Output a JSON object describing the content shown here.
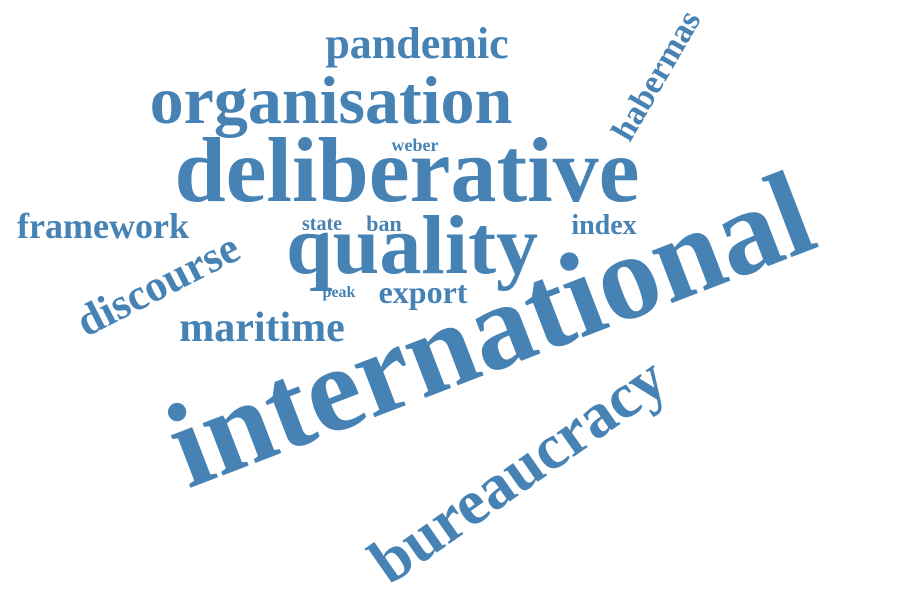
{
  "word_cloud": {
    "color": "#4682b4",
    "background": "#ffffff",
    "words": [
      {
        "text": "international"
      },
      {
        "text": "deliberative"
      },
      {
        "text": "organisation"
      },
      {
        "text": "quality"
      },
      {
        "text": "bureaucracy"
      },
      {
        "text": "pandemic"
      },
      {
        "text": "discourse"
      },
      {
        "text": "maritime"
      },
      {
        "text": "framework"
      },
      {
        "text": "habermas"
      },
      {
        "text": "export"
      },
      {
        "text": "index"
      },
      {
        "text": "weber"
      },
      {
        "text": "state"
      },
      {
        "text": "ban"
      },
      {
        "text": "peak"
      }
    ]
  }
}
